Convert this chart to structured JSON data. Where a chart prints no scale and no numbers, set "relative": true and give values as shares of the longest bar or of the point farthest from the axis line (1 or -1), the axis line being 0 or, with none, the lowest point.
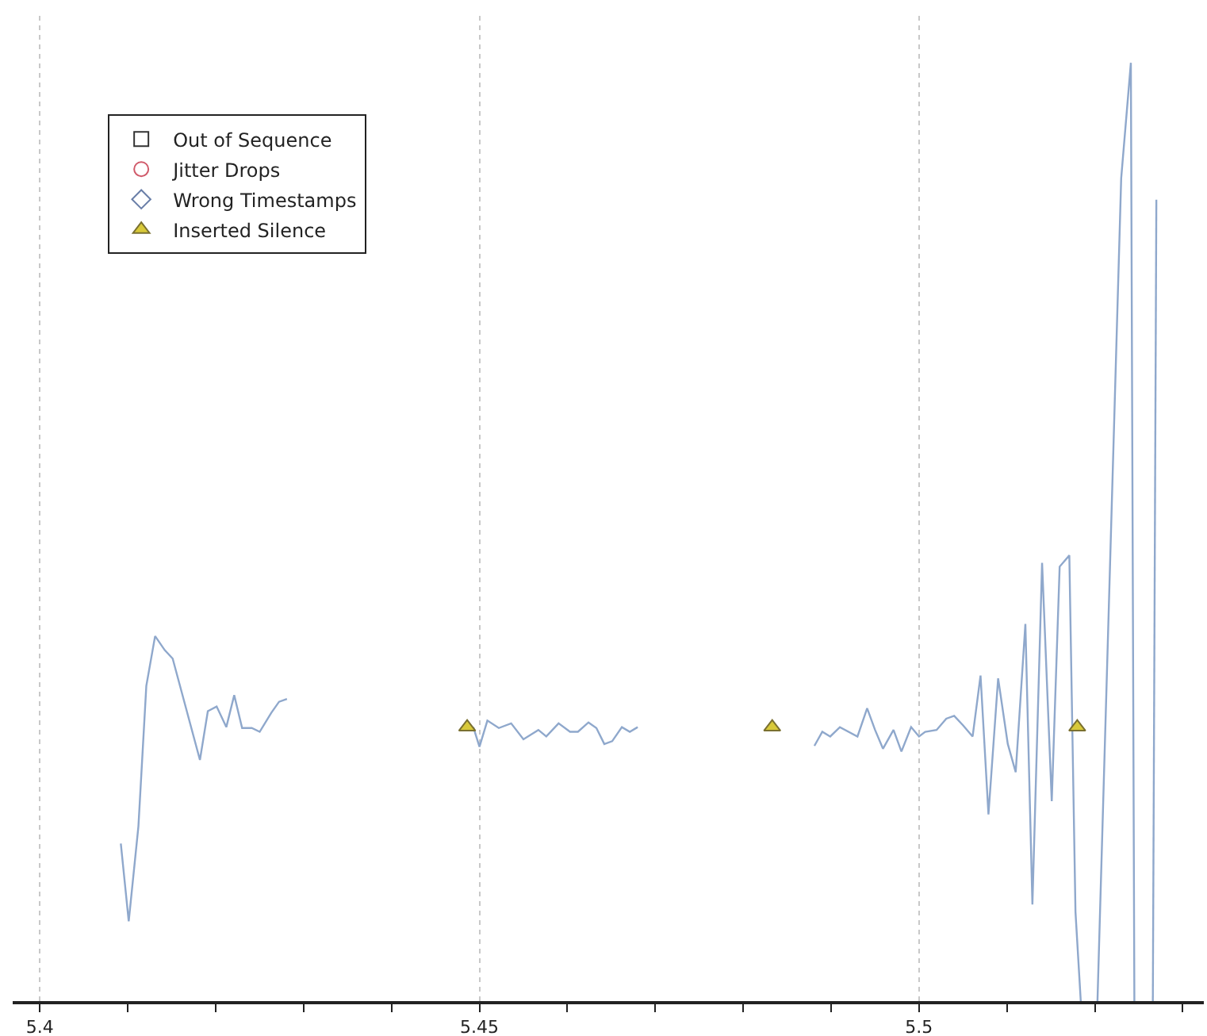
{
  "chart_data": {
    "type": "line",
    "relative": true,
    "grid": "x",
    "legend": "top left",
    "tick_labels": "x",
    "xlim": [
      5.3969,
      5.5324
    ],
    "xticks": [
      5.4,
      {
        "value": 5.41,
        "label": null
      },
      {
        "value": 5.42,
        "label": null
      },
      {
        "value": 5.43,
        "label": null
      },
      {
        "value": 5.44,
        "label": null
      },
      5.45,
      {
        "value": 5.46,
        "label": null
      },
      {
        "value": 5.47,
        "label": null
      },
      {
        "value": 5.48,
        "label": null
      },
      {
        "value": 5.49,
        "label": null
      },
      5.5,
      {
        "value": 5.51,
        "label": null
      },
      {
        "value": 5.52,
        "label": null
      },
      {
        "value": 5.53,
        "label": null
      }
    ],
    "series": [
      {
        "color": "#8fa8cc",
        "marker": "none",
        "line_style": "solid",
        "x": [
          5.4092,
          5.4101,
          5.4112,
          5.4121,
          5.4131,
          5.4142,
          5.4151,
          5.4182,
          5.4191,
          5.4201,
          5.4212,
          5.4221,
          5.423,
          5.4241,
          5.425,
          5.4263,
          5.4272,
          5.4281,
          5.439,
          5.4493,
          5.45,
          5.4509,
          5.4522,
          5.4536,
          5.455,
          5.4567,
          5.4576,
          5.459,
          5.4603,
          5.4612,
          5.4624,
          5.4633,
          5.4642,
          5.4651,
          5.4662,
          5.4671,
          5.468,
          5.478,
          5.4881,
          5.489,
          5.4899,
          5.491,
          5.493,
          5.4941,
          5.495,
          5.4959,
          5.4971,
          5.498,
          5.4991,
          5.5,
          5.5007,
          5.502,
          5.5031,
          5.504,
          5.505,
          5.5061,
          5.507,
          5.5079,
          5.509,
          5.5101,
          5.511,
          5.5121,
          5.5129,
          5.514,
          5.5151,
          5.516,
          5.5171,
          5.5178,
          5.5184,
          5.5194,
          5.5203,
          5.523,
          5.5241,
          5.5245,
          5.5255,
          5.5266,
          5.527
        ],
        "values": [
          0.168,
          0.085,
          0.186,
          0.336,
          0.389,
          0.374,
          0.365,
          0.257,
          0.309,
          0.314,
          0.292,
          0.326,
          0.291,
          0.291,
          0.287,
          0.307,
          0.319,
          0.322,
          null,
          0.292,
          0.271,
          0.299,
          0.291,
          0.296,
          0.279,
          0.289,
          0.282,
          0.296,
          0.287,
          0.287,
          0.297,
          0.291,
          0.274,
          0.277,
          0.292,
          0.287,
          0.292,
          null,
          0.272,
          0.287,
          0.282,
          0.292,
          0.282,
          0.312,
          0.289,
          0.269,
          0.289,
          0.266,
          0.292,
          0.282,
          0.287,
          0.289,
          0.301,
          0.304,
          0.294,
          0.282,
          0.347,
          0.199,
          0.344,
          0.274,
          0.244,
          0.402,
          0.103,
          0.467,
          0.213,
          0.463,
          0.475,
          0.095,
          0,
          null,
          0,
          0.877,
          1,
          0,
          null,
          0,
          0.854
        ]
      },
      {
        "name": "Out of Sequence",
        "type": "scatter",
        "marker": "square",
        "color": "#333333"
      },
      {
        "name": "Jitter Drops",
        "type": "scatter",
        "marker": "circle",
        "color": "#d05a6a"
      },
      {
        "name": "Wrong Timestamps",
        "type": "scatter",
        "marker": "diamond",
        "color": "#6a7fa8"
      },
      {
        "name": "Inserted Silence",
        "type": "scatter",
        "marker": "triangle",
        "color": "#d8c93a",
        "x": [
          5.4486,
          5.4833,
          5.518
        ],
        "values": [
          0.292,
          0.292,
          0.292
        ]
      }
    ]
  }
}
